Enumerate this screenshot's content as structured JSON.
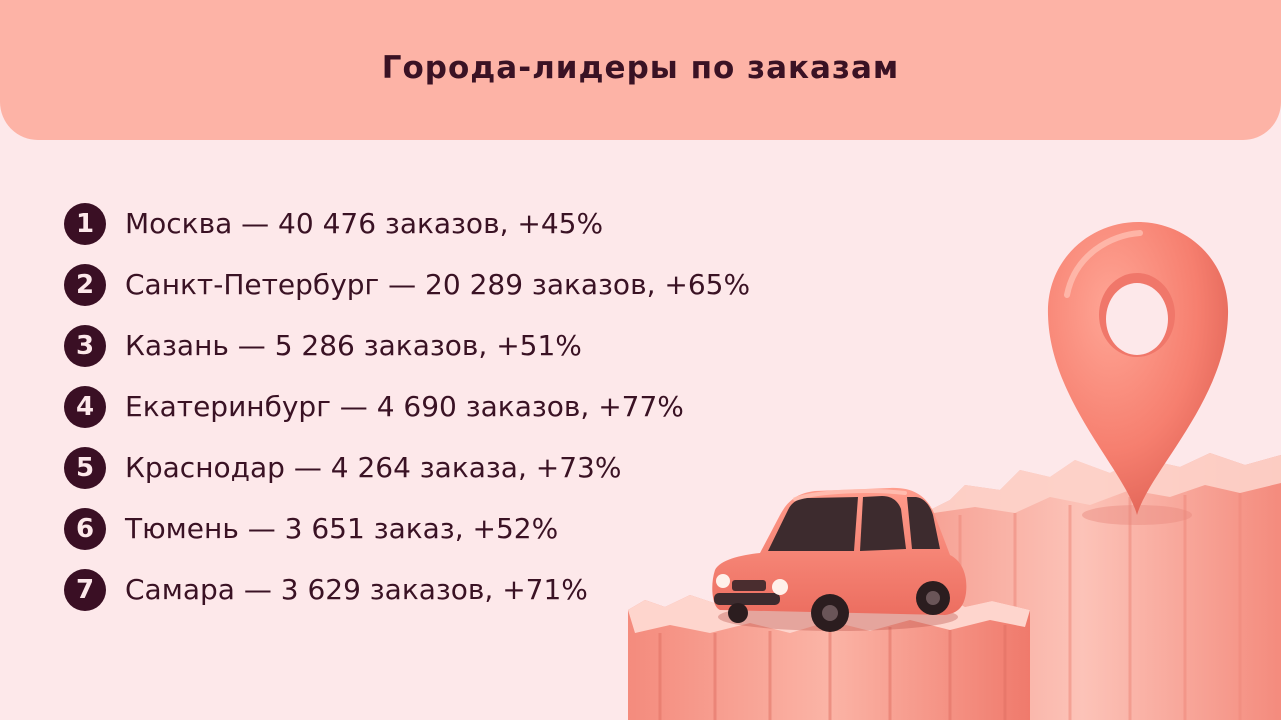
{
  "title": "Города-лидеры по заказам",
  "items": [
    {
      "num": "1",
      "text": "Москва — 40 476 заказов, +45%"
    },
    {
      "num": "2",
      "text": "Санкт-Петербург — 20 289 заказов, +65%"
    },
    {
      "num": "3",
      "text": "Казань — 5 286 заказов, +51%"
    },
    {
      "num": "4",
      "text": "Екатеринбург — 4 690 заказов, +77%"
    },
    {
      "num": "5",
      "text": "Краснодар — 4 264 заказа, +73%"
    },
    {
      "num": "6",
      "text": "Тюмень — 3 651 заказ, +52%"
    },
    {
      "num": "7",
      "text": "Самара — 3 629 заказов, +71%"
    }
  ],
  "colors": {
    "background": "#fde8ea",
    "header": "#fdb3a6",
    "accent_dark": "#3a0f24",
    "illustration_coral": "#f97f71"
  },
  "illustration_icons": [
    "map-pin-icon",
    "car-icon"
  ]
}
